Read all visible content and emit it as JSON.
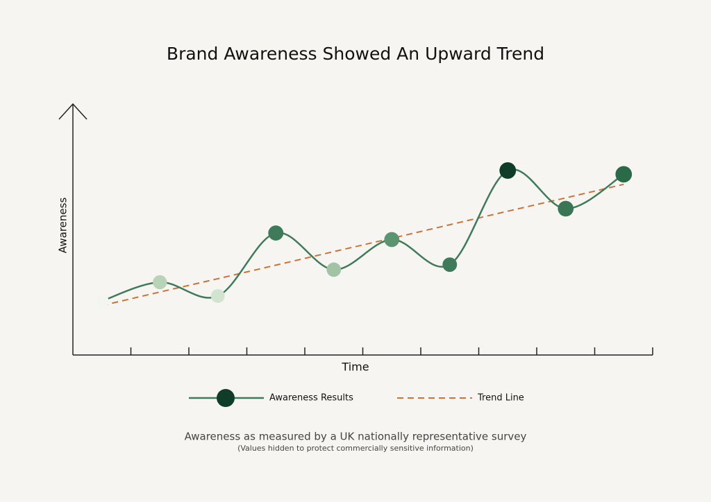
{
  "chart_data": {
    "type": "line",
    "title": "Brand Awareness Showed An Upward Trend",
    "x_label": "Time",
    "y_label": "Awareness",
    "categories": [
      null,
      null,
      null,
      null,
      null,
      null,
      null,
      null,
      null,
      null
    ],
    "ylim": [
      0,
      100
    ],
    "series": [
      {
        "name": "Awareness Results",
        "color": "#3f7a5a",
        "colors": [
          "#f3f5f0",
          "#b9d3b9",
          "#d2e3d0",
          "#3f7a5a",
          "#a3c3a5",
          "#5a9470",
          "#3f7a5a",
          "#0f3d2a",
          "#3a7656",
          "#2a6a48"
        ],
        "values": [
          21.5,
          29,
          23.5,
          48.6,
          34,
          46,
          36,
          73.5,
          58.3,
          72
        ]
      },
      {
        "name": "Trend Line",
        "color": "#c8733a",
        "dashed": true,
        "values": [
          19.7,
          25.1,
          30.4,
          35.8,
          41.2,
          46.5,
          51.9,
          57.3,
          62.6,
          68.0
        ]
      }
    ],
    "caption": "Awareness as measured by a UK nationally representative survey",
    "note": "(Values hidden to protect commercially sensitive information)"
  }
}
